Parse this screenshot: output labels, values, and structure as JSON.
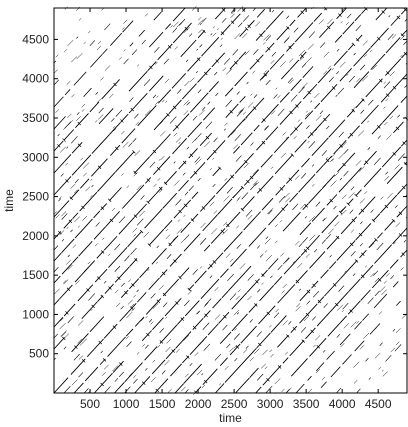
{
  "chart_data": {
    "type": "scatter",
    "subtype": "recurrence-plot",
    "title": "",
    "xlabel": "time",
    "ylabel": "time",
    "xlim": [
      0,
      4900
    ],
    "ylim": [
      0,
      4900
    ],
    "xticks": [
      500,
      1000,
      1500,
      2000,
      2500,
      3000,
      3500,
      4000,
      4500
    ],
    "xtick_labels": [
      "500",
      "1000",
      "1500",
      "2000",
      "2500",
      "3000",
      "3500",
      "4000",
      "4500"
    ],
    "yticks": [
      500,
      1000,
      1500,
      2000,
      2500,
      3000,
      3500,
      4000,
      4500
    ],
    "ytick_labels": [
      "500",
      "1000",
      "1500",
      "2000",
      "2500",
      "3000",
      "3500",
      "4000",
      "4500"
    ],
    "grid": false,
    "legend": "none",
    "line_color": "#000000",
    "diagonal_lines": [
      {
        "lag": 0,
        "strength": "strong"
      },
      {
        "lag": 280,
        "strength": "strong"
      },
      {
        "lag": 560,
        "strength": "strong"
      },
      {
        "lag": 840,
        "strength": "strong"
      },
      {
        "lag": 1120,
        "strength": "strong"
      },
      {
        "lag": 1400,
        "strength": "strong"
      },
      {
        "lag": 1680,
        "strength": "strong"
      },
      {
        "lag": 1960,
        "strength": "strong"
      },
      {
        "lag": 2240,
        "strength": "strong"
      },
      {
        "lag": 2520,
        "strength": "strong"
      },
      {
        "lag": 2800,
        "strength": "strong"
      },
      {
        "lag": 3080,
        "strength": "strong"
      },
      {
        "lag": 3360,
        "strength": "medium"
      },
      {
        "lag": 3640,
        "strength": "medium"
      },
      {
        "lag": 3920,
        "strength": "weak"
      },
      {
        "lag": 4200,
        "strength": "weak"
      },
      {
        "lag": 140,
        "strength": "weak"
      },
      {
        "lag": 420,
        "strength": "weak"
      },
      {
        "lag": 700,
        "strength": "weak"
      },
      {
        "lag": 980,
        "strength": "weak"
      },
      {
        "lag": 1260,
        "strength": "weak"
      },
      {
        "lag": 1540,
        "strength": "weak"
      },
      {
        "lag": 1820,
        "strength": "weak"
      },
      {
        "lag": 2100,
        "strength": "weak"
      },
      {
        "lag": 2380,
        "strength": "weak"
      },
      {
        "lag": 2660,
        "strength": "weak"
      },
      {
        "lag": 2940,
        "strength": "weak"
      },
      {
        "lag": 3220,
        "strength": "weak"
      }
    ]
  }
}
